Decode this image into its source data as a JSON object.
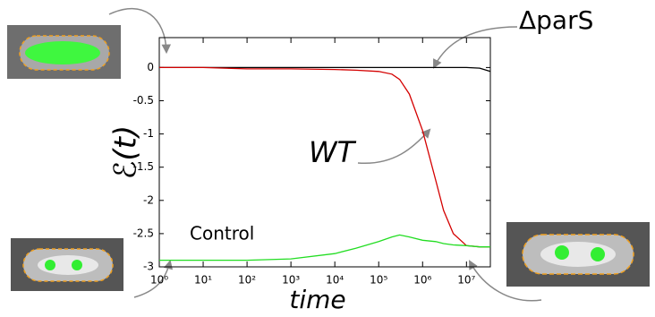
{
  "chart_data": {
    "type": "line",
    "y_label": "ℰ(t)",
    "x_label": "time",
    "annotations": [
      "ΔparS",
      "WT",
      "Control"
    ],
    "x": [
      1,
      10,
      100,
      1000,
      10000,
      30000,
      100000,
      200000,
      300000,
      500000,
      1000000,
      2000000,
      3000000,
      5000000,
      10000000,
      20000000,
      35000000
    ],
    "series": [
      {
        "name": "ΔparS",
        "color": "#000000",
        "values": [
          0,
          0,
          0,
          0,
          0,
          0,
          0,
          0,
          0,
          0,
          0,
          0,
          0,
          0,
          0,
          -0.01,
          -0.06
        ]
      },
      {
        "name": "WT",
        "color": "#d40000",
        "values": [
          0,
          0,
          -0.02,
          -0.02,
          -0.03,
          -0.04,
          -0.06,
          -0.1,
          -0.18,
          -0.4,
          -0.95,
          -1.7,
          -2.15,
          -2.5,
          -2.68,
          -2.7,
          -2.7
        ]
      },
      {
        "name": "Control",
        "color": "#22dd22",
        "values": [
          -2.9,
          -2.9,
          -2.9,
          -2.88,
          -2.8,
          -2.72,
          -2.62,
          -2.55,
          -2.52,
          -2.55,
          -2.6,
          -2.62,
          -2.65,
          -2.67,
          -2.68,
          -2.7,
          -2.7
        ]
      }
    ],
    "xlog": true,
    "xlim": [
      1,
      35000000
    ],
    "xticks": [
      {
        "value": 1,
        "label": "10⁰"
      },
      {
        "value": 10,
        "label": "10¹"
      },
      {
        "value": 100,
        "label": "10²"
      },
      {
        "value": 1000,
        "label": "10³"
      },
      {
        "value": 10000,
        "label": "10⁴"
      },
      {
        "value": 100000,
        "label": "10⁵"
      },
      {
        "value": 1000000,
        "label": "10⁶"
      },
      {
        "value": 10000000,
        "label": "10⁷"
      }
    ],
    "ylim": [
      -3,
      0.45
    ],
    "yticks": [
      0,
      -0.5,
      -1,
      -1.5,
      -2,
      -2.5,
      -3
    ]
  }
}
